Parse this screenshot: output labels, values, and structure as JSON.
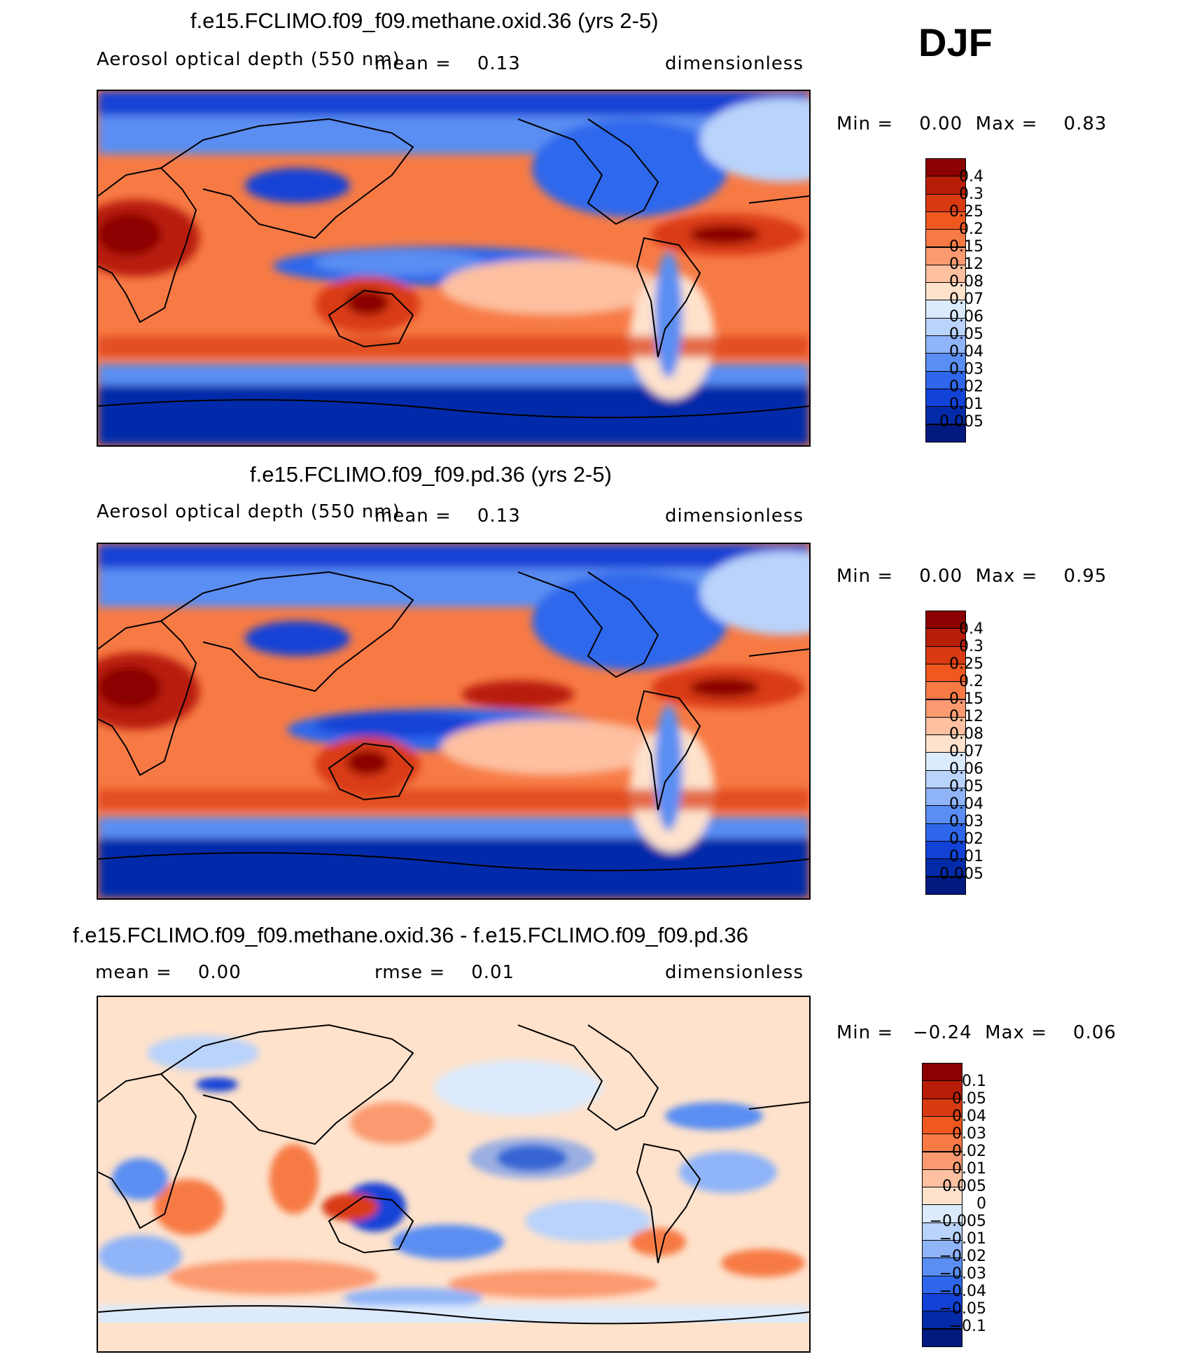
{
  "season": "DJF",
  "panels": [
    {
      "title": "f.e15.FCLIMO.f09_f09.methane.oxid.36 (yrs 2-5)",
      "subtitle_left": "Aerosol optical depth (550 nm)",
      "subtitle_mid": "mean =    0.13",
      "subtitle_right": "dimensionless",
      "minmax": "Min =    0.00  Max =    0.83",
      "colorbar": {
        "labels": [
          "0.4",
          "0.3",
          "0.25",
          "0.2",
          "0.15",
          "0.12",
          "0.08",
          "0.07",
          "0.06",
          "0.05",
          "0.04",
          "0.03",
          "0.02",
          "0.01",
          "0.005"
        ],
        "colors": [
          "#8b0000",
          "#b81d08",
          "#d93a12",
          "#f0581f",
          "#f77a45",
          "#fb9a70",
          "#fdc0a0",
          "#fee2cc",
          "#dbeafc",
          "#b9d3fb",
          "#8fb4f8",
          "#5a8ef2",
          "#2f67ec",
          "#1242d6",
          "#032aa9",
          "#001a80"
        ]
      }
    },
    {
      "title": "f.e15.FCLIMO.f09_f09.pd.36 (yrs 2-5)",
      "subtitle_left": "Aerosol optical depth (550 nm)",
      "subtitle_mid": "mean =    0.13",
      "subtitle_right": "dimensionless",
      "minmax": "Min =    0.00  Max =    0.95",
      "colorbar": {
        "labels": [
          "0.4",
          "0.3",
          "0.25",
          "0.2",
          "0.15",
          "0.12",
          "0.08",
          "0.07",
          "0.06",
          "0.05",
          "0.04",
          "0.03",
          "0.02",
          "0.01",
          "0.005"
        ],
        "colors": [
          "#8b0000",
          "#b81d08",
          "#d93a12",
          "#f0581f",
          "#f77a45",
          "#fb9a70",
          "#fdc0a0",
          "#fee2cc",
          "#dbeafc",
          "#b9d3fb",
          "#8fb4f8",
          "#5a8ef2",
          "#2f67ec",
          "#1242d6",
          "#032aa9",
          "#001a80"
        ]
      }
    },
    {
      "title": "f.e15.FCLIMO.f09_f09.methane.oxid.36 - f.e15.FCLIMO.f09_f09.pd.36",
      "subtitle_left": "mean =    0.00",
      "subtitle_mid": "rmse =    0.01",
      "subtitle_right": "dimensionless",
      "minmax": "Min =   −0.24  Max =    0.06",
      "colorbar": {
        "labels": [
          "0.1",
          "0.05",
          "0.04",
          "0.03",
          "0.02",
          "0.01",
          "0.005",
          "0",
          "−0.005",
          "−0.01",
          "−0.02",
          "−0.03",
          "−0.04",
          "−0.05",
          "−0.1"
        ],
        "colors": [
          "#8b0000",
          "#b81d08",
          "#d93a12",
          "#f0581f",
          "#f77a45",
          "#fb9a70",
          "#fdc0a0",
          "#fee2cc",
          "#dbeafc",
          "#b9d3fb",
          "#8fb4f8",
          "#5a8ef2",
          "#2f67ec",
          "#1242d6",
          "#032aa9",
          "#001a80"
        ]
      }
    }
  ]
}
